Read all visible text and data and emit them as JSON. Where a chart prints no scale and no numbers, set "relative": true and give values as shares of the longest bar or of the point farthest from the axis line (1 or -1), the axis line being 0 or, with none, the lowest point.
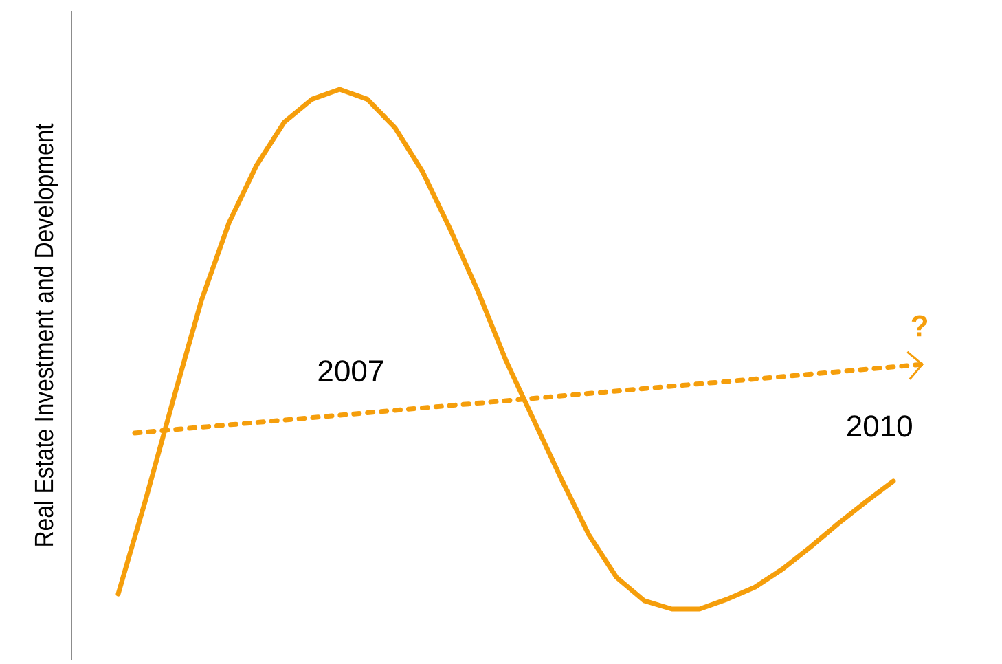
{
  "chart_data": {
    "type": "line",
    "relative": true,
    "ylabel": "Real Estate Investment and Development",
    "categories": [
      null,
      null,
      null,
      null,
      null,
      null,
      null,
      null,
      null,
      null,
      null,
      null,
      null,
      null,
      null,
      null,
      null,
      null,
      null,
      null,
      null,
      null,
      null,
      null,
      null,
      null,
      null,
      null,
      null
    ],
    "series": [
      {
        "color": "#f59e0b",
        "values": [
          0.029,
          0.212,
          0.405,
          0.593,
          0.743,
          0.854,
          0.937,
          0.981,
          1,
          0.981,
          0.926,
          0.841,
          0.73,
          0.611,
          0.479,
          0.365,
          0.251,
          0.143,
          0.061,
          0.016,
          0,
          0,
          0.019,
          0.042,
          0.077,
          0.119,
          0.164,
          0.206,
          0.246
        ]
      }
    ],
    "annotations": [
      "2007",
      "2010",
      "**?**"
    ]
  }
}
